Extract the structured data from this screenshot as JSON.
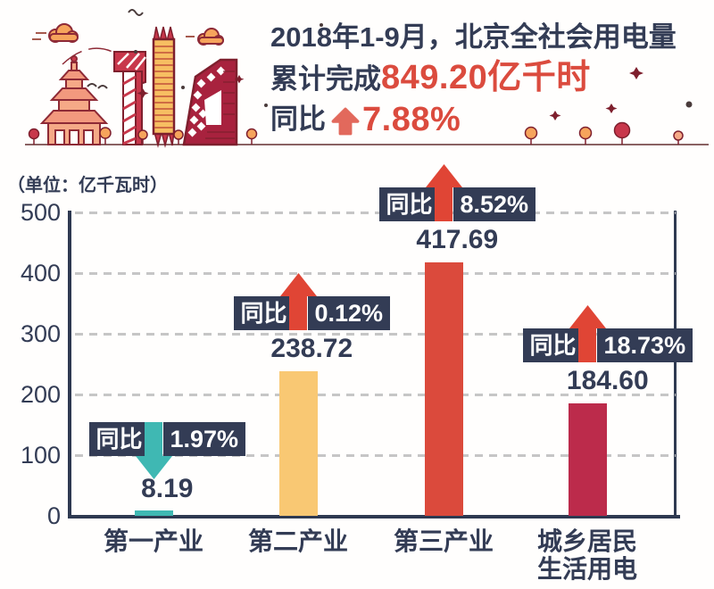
{
  "header": {
    "line1": "2018年1-9月，北京全社会用电量",
    "line2_prefix": "累计完成",
    "line2_value": "849.20亿千时",
    "line3_prefix": "同比",
    "line3_arrow_icon": "arrow-up-icon",
    "line3_value": "7.88%"
  },
  "unit_label": "（单位：亿千瓦时）",
  "colors": {
    "navy_text": "#333C55",
    "axis_navy": "#2E3951",
    "red_accent": "#DB4B3E",
    "header_arrow_red": "#E2695C",
    "badge_navy": "#333C55",
    "arrow_up_red": "#E04535",
    "arrow_down_teal": "#3FB8B3",
    "grid_gray": "#C6C6C6",
    "ground_line": "#8a6262"
  },
  "chart_data": {
    "type": "bar",
    "title": "2018年1-9月北京全社会用电量",
    "ylabel": "亿千瓦时",
    "ylim": [
      0,
      500
    ],
    "y_ticks": [
      0,
      100,
      200,
      300,
      400,
      500
    ],
    "grid": "horizontal-dashed",
    "legend": "none",
    "categories": [
      "第一产业",
      "第二产业",
      "第三产业",
      "城乡居民\n生活用电"
    ],
    "values": [
      8.19,
      238.72,
      417.69,
      184.6
    ],
    "value_labels": [
      "8.19",
      "238.72",
      "417.69",
      "184.60"
    ],
    "bar_colors": [
      "#3FB8B3",
      "#F9C873",
      "#DB4A3C",
      "#BC2B4B"
    ],
    "bar_ids": [
      "primary-industry",
      "secondary-industry",
      "tertiary-industry",
      "urban-rural-residential"
    ],
    "yoy_series": [
      {
        "label": "同比",
        "pct": "1.97%",
        "direction": "down",
        "arrow_color": "#3FB8B3"
      },
      {
        "label": "同比",
        "pct": "0.12%",
        "direction": "up",
        "arrow_color": "#E04535"
      },
      {
        "label": "同比",
        "pct": "8.52%",
        "direction": "up",
        "arrow_color": "#E04535"
      },
      {
        "label": "同比",
        "pct": "18.73%",
        "direction": "up",
        "arrow_color": "#E04535"
      }
    ]
  }
}
